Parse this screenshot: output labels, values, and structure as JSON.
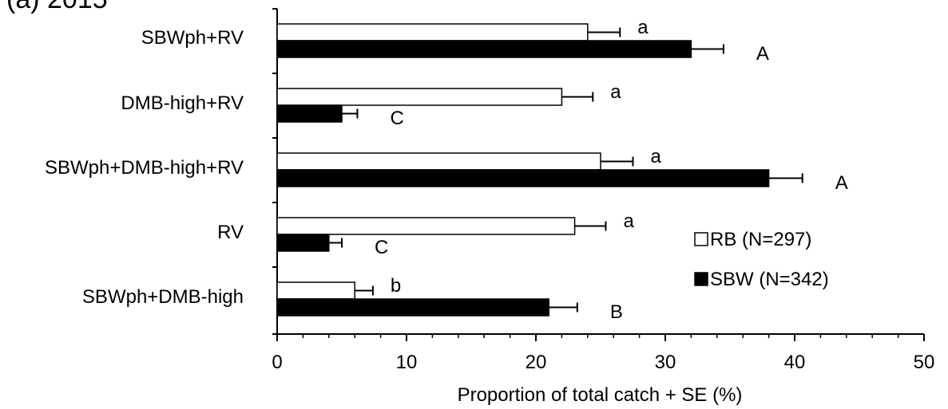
{
  "chart_data": {
    "type": "bar",
    "orientation": "horizontal",
    "panel_label": "(a) 2015",
    "categories": [
      "SBWph+RV",
      "DMB-high+RV",
      "SBWph+DMB-high+RV",
      "RV",
      "SBWph+DMB-high"
    ],
    "series": [
      {
        "name": "RB (N=297)",
        "color": "#ffffff",
        "values": [
          24,
          22,
          25,
          23,
          6
        ],
        "errors": [
          2.5,
          2.4,
          2.5,
          2.4,
          1.4
        ],
        "letters": [
          "a",
          "a",
          "a",
          "a",
          "b"
        ]
      },
      {
        "name": "SBW (N=342)",
        "color": "#000000",
        "values": [
          32,
          5,
          38,
          4,
          21
        ],
        "errors": [
          2.5,
          1.2,
          2.6,
          1.0,
          2.2
        ],
        "letters": [
          "A",
          "C",
          "A",
          "C",
          "B"
        ]
      }
    ],
    "xlabel": "Proportion of total catch + SE (%)",
    "ylabel": "",
    "xlim": [
      0,
      50
    ],
    "xticks": [
      0,
      10,
      20,
      30,
      40,
      50
    ],
    "grid": false,
    "legend_position": "lower-right"
  }
}
